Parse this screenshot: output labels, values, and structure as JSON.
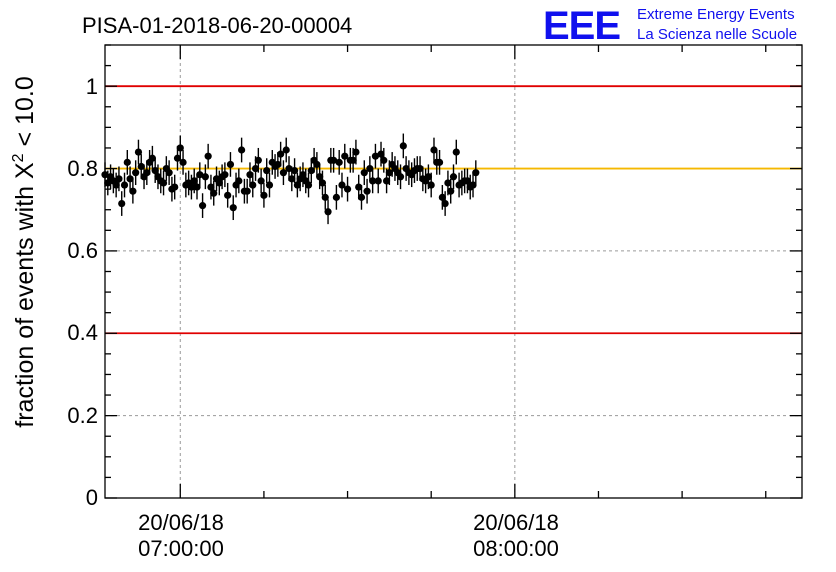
{
  "chart_data": {
    "type": "scatter",
    "title": "PISA-01-2018-06-20-00004",
    "ylabel": "fraction of events with Χ² < 10.0",
    "ylabel_main": "fraction of events with Χ",
    "ylabel_sup": "2",
    "ylabel_tail": " < 10.0",
    "ylim": [
      0,
      1.1
    ],
    "xlim": [
      "2018-06-20 06:46:30",
      "2018-06-20 08:51:30"
    ],
    "yticks": [
      "0",
      "0.2",
      "0.4",
      "0.6",
      "0.8",
      "1"
    ],
    "xtick_labels": [
      {
        "date": "20/06/18",
        "time": "07:00:00"
      },
      {
        "date": "20/06/18",
        "time": "08:00:00"
      }
    ],
    "grid": true,
    "reference_lines": [
      {
        "y": 1.0,
        "color": "#e00000"
      },
      {
        "y": 0.4,
        "color": "#e00000"
      },
      {
        "y": 0.8,
        "color": "#f5b800"
      }
    ],
    "marker_color": "#000000",
    "series": [
      {
        "start": "2018-06-20 06:46:30",
        "interval_seconds": 30,
        "y": [
          0.785,
          0.765,
          0.78,
          0.77,
          0.76,
          0.775,
          0.715,
          0.76,
          0.815,
          0.775,
          0.745,
          0.79,
          0.84,
          0.805,
          0.78,
          0.79,
          0.815,
          0.825,
          0.795,
          0.78,
          0.77,
          0.765,
          0.8,
          0.79,
          0.75,
          0.755,
          0.825,
          0.85,
          0.815,
          0.76,
          0.765,
          0.755,
          0.77,
          0.755,
          0.785,
          0.71,
          0.78,
          0.83,
          0.755,
          0.74,
          0.775,
          0.765,
          0.78,
          0.785,
          0.735,
          0.81,
          0.705,
          0.76,
          0.77,
          0.845,
          0.745,
          0.745,
          0.785,
          0.76,
          0.8,
          0.82,
          0.77,
          0.735,
          0.795,
          0.76,
          0.815,
          0.805,
          0.81,
          0.835,
          0.79,
          0.845,
          0.8,
          0.775,
          0.795,
          0.76,
          0.775,
          0.785,
          0.77,
          0.76,
          0.795,
          0.82,
          0.81,
          0.78,
          0.765,
          0.73,
          0.695,
          0.82,
          0.82,
          0.73,
          0.815,
          0.76,
          0.83,
          0.75,
          0.82,
          0.82,
          0.84,
          0.755,
          0.73,
          0.79,
          0.745,
          0.8,
          0.77,
          0.83,
          0.77,
          0.835,
          0.82,
          0.77,
          0.79,
          0.81,
          0.8,
          0.79,
          0.78,
          0.855,
          0.8,
          0.79,
          0.785,
          0.795,
          0.8,
          0.8,
          0.775,
          0.77,
          0.78,
          0.76,
          0.845,
          0.815,
          0.815,
          0.73,
          0.715,
          0.765,
          0.745,
          0.78,
          0.84,
          0.76,
          0.765,
          0.77,
          0.77,
          0.755,
          0.76,
          0.79
        ],
        "err": 0.03
      }
    ]
  },
  "logo": {
    "mark": "EEE",
    "line1": "Extreme Energy Events",
    "line2": "La Scienza nelle Scuole",
    "color": "#1010ee"
  }
}
